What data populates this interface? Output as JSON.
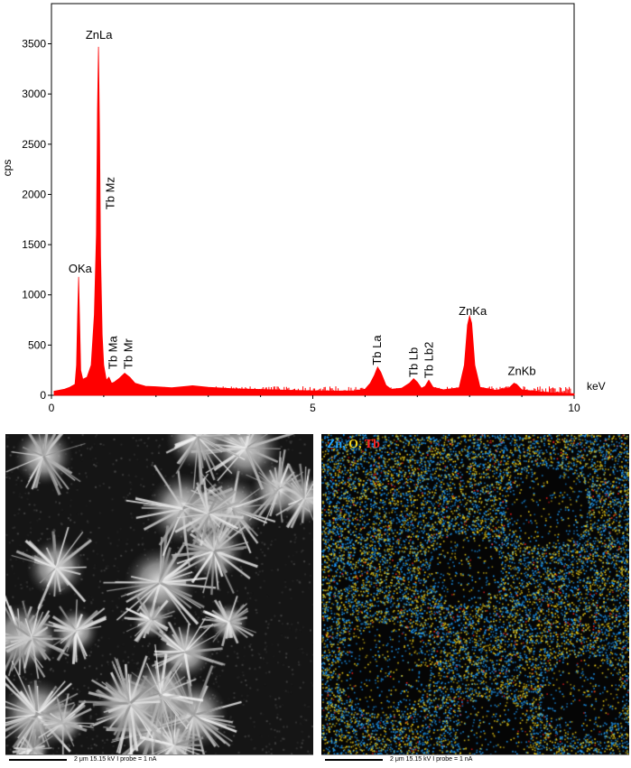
{
  "chart_data": {
    "type": "line",
    "title": "",
    "xlabel": "keV",
    "ylabel": "cps",
    "xlim": [
      0,
      10
    ],
    "ylim": [
      0,
      3900
    ],
    "x_ticks": [
      0,
      5,
      10
    ],
    "y_ticks": [
      0,
      500,
      1000,
      1500,
      2000,
      2500,
      3000,
      3500
    ],
    "series": [
      {
        "color": "#ff0000",
        "points": [
          [
            0.05,
            40
          ],
          [
            0.15,
            50
          ],
          [
            0.25,
            60
          ],
          [
            0.35,
            80
          ],
          [
            0.45,
            110
          ],
          [
            0.48,
            300
          ],
          [
            0.5,
            800
          ],
          [
            0.52,
            1180
          ],
          [
            0.54,
            700
          ],
          [
            0.56,
            250
          ],
          [
            0.6,
            160
          ],
          [
            0.68,
            180
          ],
          [
            0.76,
            300
          ],
          [
            0.82,
            800
          ],
          [
            0.86,
            1600
          ],
          [
            0.88,
            2850
          ],
          [
            0.9,
            3470
          ],
          [
            0.92,
            2600
          ],
          [
            0.94,
            1400
          ],
          [
            0.97,
            600
          ],
          [
            1.0,
            300
          ],
          [
            1.05,
            150
          ],
          [
            1.1,
            180
          ],
          [
            1.15,
            120
          ],
          [
            1.2,
            130
          ],
          [
            1.3,
            170
          ],
          [
            1.4,
            220
          ],
          [
            1.5,
            180
          ],
          [
            1.6,
            120
          ],
          [
            1.8,
            90
          ],
          [
            2.0,
            85
          ],
          [
            2.3,
            75
          ],
          [
            2.6,
            90
          ],
          [
            2.7,
            95
          ],
          [
            3.0,
            80
          ],
          [
            3.5,
            65
          ],
          [
            4.0,
            58
          ],
          [
            4.5,
            50
          ],
          [
            5.0,
            45
          ],
          [
            5.5,
            42
          ],
          [
            5.8,
            45
          ],
          [
            6.0,
            60
          ],
          [
            6.1,
            120
          ],
          [
            6.18,
            200
          ],
          [
            6.24,
            280
          ],
          [
            6.3,
            230
          ],
          [
            6.4,
            100
          ],
          [
            6.5,
            60
          ],
          [
            6.7,
            70
          ],
          [
            6.85,
            120
          ],
          [
            6.93,
            165
          ],
          [
            7.0,
            130
          ],
          [
            7.08,
            70
          ],
          [
            7.15,
            90
          ],
          [
            7.22,
            150
          ],
          [
            7.3,
            80
          ],
          [
            7.5,
            55
          ],
          [
            7.8,
            75
          ],
          [
            7.9,
            300
          ],
          [
            7.96,
            700
          ],
          [
            8.0,
            790
          ],
          [
            8.04,
            720
          ],
          [
            8.1,
            300
          ],
          [
            8.2,
            80
          ],
          [
            8.5,
            50
          ],
          [
            8.75,
            70
          ],
          [
            8.85,
            120
          ],
          [
            8.9,
            110
          ],
          [
            9.0,
            55
          ],
          [
            9.5,
            25
          ],
          [
            10.0,
            15
          ]
        ]
      }
    ],
    "annotations": [
      {
        "text": "ZnLa",
        "x": 0.91,
        "y": 3550,
        "rotate": false
      },
      {
        "text": "Tb Mz",
        "x": 1.2,
        "y": 1850,
        "rotate": true
      },
      {
        "text": "OKa",
        "x": 0.55,
        "y": 1220,
        "rotate": false
      },
      {
        "text": "Tb Ma",
        "x": 1.25,
        "y": 260,
        "rotate": true
      },
      {
        "text": "Tb Mr",
        "x": 1.55,
        "y": 260,
        "rotate": true
      },
      {
        "text": "Tb La",
        "x": 6.3,
        "y": 300,
        "rotate": true
      },
      {
        "text": "Tb Lb",
        "x": 7.0,
        "y": 180,
        "rotate": true
      },
      {
        "text": "Tb Lb2",
        "x": 7.3,
        "y": 170,
        "rotate": true
      },
      {
        "text": "ZnKa",
        "x": 8.06,
        "y": 800,
        "rotate": false
      },
      {
        "text": "ZnKb",
        "x": 9.0,
        "y": 200,
        "rotate": false
      }
    ]
  },
  "sem_image": {
    "scalebar": "2 μm    15.15 kV    I probe = 1 nA"
  },
  "eds_map": {
    "legend": [
      {
        "text": "Zn,",
        "color": "#1fa0ff"
      },
      {
        "text": " O,",
        "color": "#f2d31a"
      },
      {
        "text": " Tb",
        "color": "#ff2020"
      }
    ],
    "scalebar": "2 μm    15.15 kV    I probe = 1 nA"
  }
}
